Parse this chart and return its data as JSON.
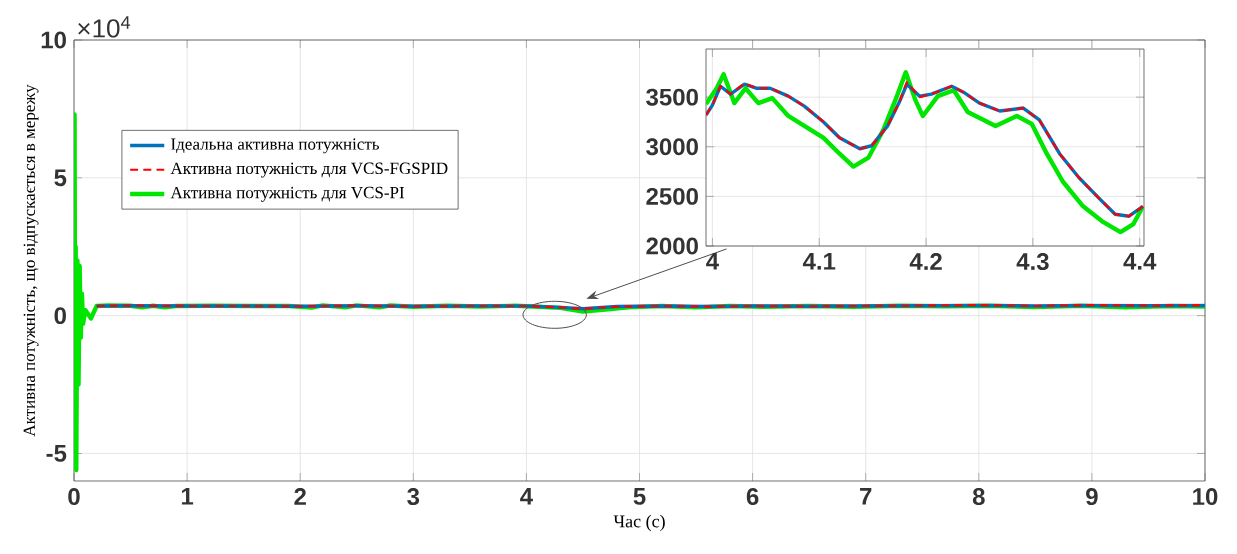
{
  "chart_data": [
    {
      "type": "line",
      "xlabel": "Час (с)",
      "ylabel": "Активна потужність, що відпускається в мережу",
      "xlim": [
        0,
        10
      ],
      "ylim": [
        -6,
        10
      ],
      "xticks": [
        0,
        1,
        2,
        3,
        4,
        5,
        6,
        7,
        8,
        9,
        10
      ],
      "yticks": [
        -5,
        0,
        5,
        10
      ],
      "grid": true,
      "legend": "top left",
      "annotations": [
        "×10$^{4}$"
      ],
      "series": [
        {
          "name": "Ідеальна активна потужність",
          "color": "#0072bd",
          "line_style": "solid",
          "x": [
            0.2,
            0.5,
            1.0,
            1.5,
            2.0,
            2.5,
            3.0,
            3.5,
            4.0,
            4.3,
            4.5,
            4.8,
            5.2,
            5.6,
            6.0,
            6.5,
            7.0,
            7.5,
            8.0,
            8.5,
            9.0,
            9.5,
            10.0
          ],
          "values": [
            0.35,
            0.36,
            0.35,
            0.35,
            0.34,
            0.36,
            0.34,
            0.35,
            0.35,
            0.3,
            0.25,
            0.33,
            0.35,
            0.33,
            0.35,
            0.34,
            0.35,
            0.36,
            0.37,
            0.35,
            0.37,
            0.36,
            0.37
          ]
        },
        {
          "name": "Активна потужність для VCS-FGSPID",
          "color": "#ff0000",
          "line_style": "dashed",
          "x": [
            0.2,
            0.5,
            1.0,
            1.5,
            2.0,
            2.5,
            3.0,
            3.5,
            4.0,
            4.3,
            4.5,
            4.8,
            5.2,
            5.6,
            6.0,
            6.5,
            7.0,
            7.5,
            8.0,
            8.5,
            9.0,
            9.5,
            10.0
          ],
          "values": [
            0.35,
            0.36,
            0.35,
            0.35,
            0.34,
            0.36,
            0.34,
            0.35,
            0.35,
            0.3,
            0.25,
            0.33,
            0.35,
            0.33,
            0.35,
            0.34,
            0.35,
            0.36,
            0.38,
            0.35,
            0.38,
            0.36,
            0.38
          ]
        },
        {
          "name": "Активна потужність для VCS-PI",
          "color": "#00e600",
          "line_style": "solid",
          "x": [
            0,
            0.005,
            0.01,
            0.015,
            0.02,
            0.03,
            0.04,
            0.05,
            0.06,
            0.07,
            0.08,
            0.1,
            0.15,
            0.2,
            0.3,
            0.5,
            0.6,
            0.7,
            0.8,
            0.9,
            1.2,
            1.6,
            1.9,
            2.1,
            2.2,
            2.4,
            2.5,
            2.7,
            2.8,
            3.0,
            3.3,
            3.6,
            3.9,
            4.1,
            4.3,
            4.5,
            4.7,
            4.9,
            5.2,
            5.5,
            5.8,
            6.1,
            6.5,
            6.9,
            7.3,
            7.7,
            8.1,
            8.5,
            8.9,
            9.3,
            9.7,
            10.0
          ],
          "values": [
            0,
            7.3,
            -3,
            2.5,
            -5.6,
            2,
            -2.5,
            1.8,
            -0.8,
            0.8,
            -0.3,
            0.2,
            -0.1,
            0.35,
            0.37,
            0.36,
            0.3,
            0.36,
            0.3,
            0.35,
            0.36,
            0.35,
            0.35,
            0.29,
            0.37,
            0.3,
            0.37,
            0.3,
            0.37,
            0.32,
            0.36,
            0.33,
            0.36,
            0.32,
            0.28,
            0.15,
            0.22,
            0.3,
            0.35,
            0.3,
            0.35,
            0.32,
            0.35,
            0.32,
            0.36,
            0.34,
            0.36,
            0.31,
            0.36,
            0.3,
            0.35,
            0.33
          ]
        }
      ]
    },
    {
      "type": "line",
      "xlim": [
        3.994,
        4.404
      ],
      "ylim": [
        2000,
        3985
      ],
      "xticks": [
        4,
        4.1,
        4.2,
        4.3,
        4.4
      ],
      "yticks": [
        2000,
        2500,
        3000,
        3500
      ],
      "grid": true,
      "series": [
        {
          "color": "#0072bd",
          "line_style": "solid",
          "x": [
            3.994,
            4.0,
            4.0075,
            4.017,
            4.03,
            4.041,
            4.054,
            4.071,
            4.086,
            4.104,
            4.119,
            4.138,
            4.149,
            4.164,
            4.175,
            4.182,
            4.194,
            4.205,
            4.224,
            4.235,
            4.25,
            4.269,
            4.291,
            4.306,
            4.325,
            4.343,
            4.362,
            4.377,
            4.39,
            4.403
          ],
          "values": [
            3320,
            3420,
            3610,
            3530,
            3630,
            3590,
            3590,
            3510,
            3410,
            3250,
            3090,
            2980,
            3010,
            3210,
            3450,
            3630,
            3510,
            3530,
            3610,
            3550,
            3440,
            3360,
            3390,
            3270,
            2930,
            2690,
            2480,
            2320,
            2300,
            2400
          ]
        },
        {
          "color": "#ff0000",
          "line_style": "dashed",
          "x": [
            3.994,
            4.0,
            4.0075,
            4.017,
            4.03,
            4.041,
            4.054,
            4.071,
            4.086,
            4.104,
            4.119,
            4.138,
            4.149,
            4.164,
            4.175,
            4.182,
            4.194,
            4.205,
            4.224,
            4.235,
            4.25,
            4.269,
            4.291,
            4.306,
            4.325,
            4.343,
            4.362,
            4.377,
            4.39,
            4.403
          ],
          "values": [
            3320,
            3420,
            3610,
            3530,
            3640,
            3590,
            3590,
            3510,
            3410,
            3250,
            3090,
            2980,
            3010,
            3210,
            3450,
            3650,
            3500,
            3530,
            3610,
            3550,
            3440,
            3360,
            3390,
            3270,
            2930,
            2690,
            2480,
            2320,
            2300,
            2400
          ]
        },
        {
          "color": "#00e600",
          "line_style": "solid",
          "x": [
            3.994,
            4.004,
            4.0105,
            4.0205,
            4.031,
            4.043,
            4.056,
            4.071,
            4.086,
            4.104,
            4.119,
            4.132,
            4.146,
            4.16,
            4.172,
            4.181,
            4.19,
            4.197,
            4.211,
            4.226,
            4.239,
            4.265,
            4.285,
            4.299,
            4.313,
            4.328,
            4.347,
            4.366,
            4.382,
            4.394,
            4.403
          ],
          "values": [
            3430,
            3590,
            3730,
            3440,
            3590,
            3440,
            3490,
            3310,
            3210,
            3090,
            2930,
            2800,
            2890,
            3170,
            3490,
            3750,
            3470,
            3310,
            3510,
            3570,
            3350,
            3210,
            3310,
            3230,
            2930,
            2650,
            2400,
            2240,
            2140,
            2220,
            2400
          ]
        }
      ]
    }
  ]
}
